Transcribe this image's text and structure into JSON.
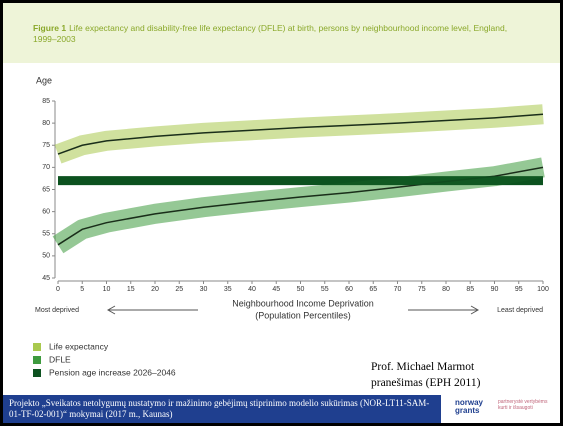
{
  "figure_label": "Figure 1",
  "chart_data": {
    "type": "line",
    "title": "Life expectancy and disability-free life expectancy (DFLE) at birth, persons by neighbourhood income level, England, 1999–2003",
    "ylabel": "Age",
    "xlabel": [
      "Neighbourhood Income Deprivation",
      "(Population Percentiles)"
    ],
    "x_annotations": [
      "Most deprived",
      "Least deprived"
    ],
    "x": [
      0,
      5,
      10,
      20,
      30,
      40,
      50,
      60,
      70,
      80,
      90,
      100
    ],
    "series": [
      {
        "name": "Life expectancy",
        "color": "#a9c94e",
        "values": [
          73,
          75,
          76,
          77,
          77.8,
          78.4,
          79,
          79.5,
          80,
          80.6,
          81.2,
          82
        ]
      },
      {
        "name": "DFLE",
        "color": "#3e9a3e",
        "values": [
          52.5,
          56,
          57.5,
          59.5,
          61,
          62.2,
          63.3,
          64.3,
          65.5,
          66.8,
          68,
          70
        ]
      }
    ],
    "band": {
      "name": "Pension age increase 2026–2046",
      "color": "#0d5220",
      "low": 66,
      "high": 68
    },
    "xlim": [
      0,
      100
    ],
    "xticks": [
      0,
      5,
      10,
      15,
      20,
      25,
      30,
      35,
      40,
      45,
      50,
      55,
      60,
      65,
      70,
      75,
      80,
      85,
      90,
      95,
      100
    ],
    "ylim": [
      45,
      85
    ],
    "yticks": [
      45,
      50,
      55,
      60,
      65,
      70,
      75,
      80,
      85
    ]
  },
  "author": [
    "Prof. Michael Marmot",
    "pranešimas (EPH 2011)"
  ],
  "footer": "Projekto „Sveikatos netolygumų nustatymo ir mažinimo gebėjimų stiprinimo modelio sukūrimas (NOR-LT11-SAM-01-TF-02-001)“ mokymai (2017 m., Kaunas)",
  "logo": [
    "norway",
    "grants",
    "partnerystė vertybėms kurti ir išsaugoti"
  ]
}
